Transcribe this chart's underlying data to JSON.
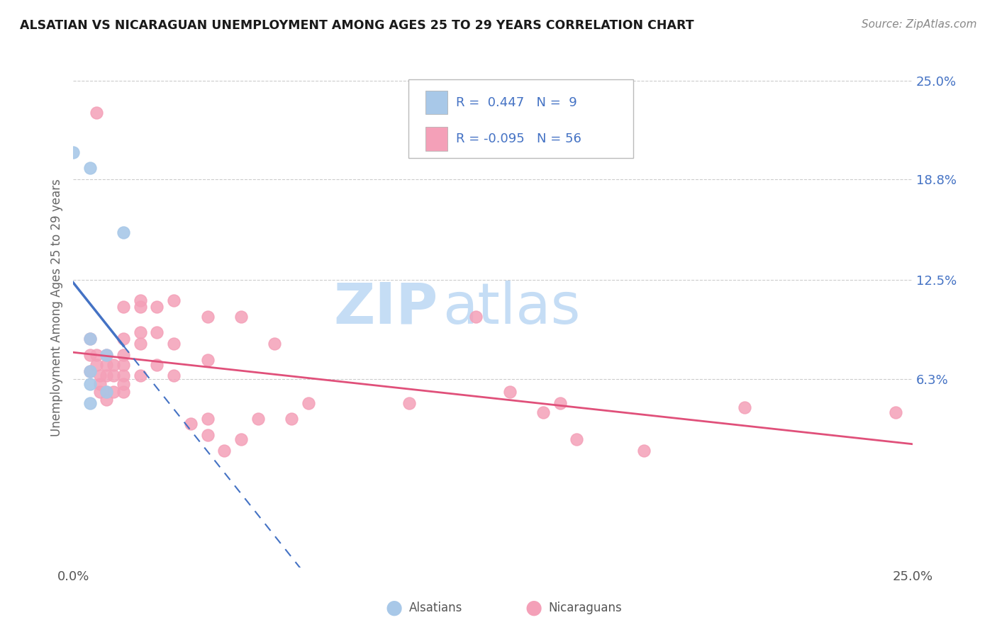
{
  "title": "ALSATIAN VS NICARAGUAN UNEMPLOYMENT AMONG AGES 25 TO 29 YEARS CORRELATION CHART",
  "source": "Source: ZipAtlas.com",
  "ylabel": "Unemployment Among Ages 25 to 29 years",
  "xlim": [
    0.0,
    0.25
  ],
  "ylim": [
    -0.055,
    0.27
  ],
  "ytick_values": [
    0.063,
    0.125,
    0.188,
    0.25
  ],
  "ytick_labels": [
    "6.3%",
    "12.5%",
    "18.8%",
    "25.0%"
  ],
  "r_alsatian": 0.447,
  "n_alsatian": 9,
  "r_nicaraguan": -0.095,
  "n_nicaraguan": 56,
  "alsatian_color": "#a8c8e8",
  "nicaraguan_color": "#f4a0b8",
  "alsatian_line_color": "#4472c4",
  "nicaraguan_line_color": "#e0507a",
  "alsatian_scatter": [
    [
      0.0,
      0.205
    ],
    [
      0.005,
      0.195
    ],
    [
      0.015,
      0.155
    ],
    [
      0.005,
      0.088
    ],
    [
      0.01,
      0.078
    ],
    [
      0.005,
      0.068
    ],
    [
      0.005,
      0.06
    ],
    [
      0.01,
      0.055
    ],
    [
      0.005,
      0.048
    ]
  ],
  "nicaraguan_scatter": [
    [
      0.007,
      0.23
    ],
    [
      0.005,
      0.088
    ],
    [
      0.005,
      0.078
    ],
    [
      0.005,
      0.068
    ],
    [
      0.007,
      0.078
    ],
    [
      0.007,
      0.072
    ],
    [
      0.008,
      0.065
    ],
    [
      0.008,
      0.06
    ],
    [
      0.008,
      0.055
    ],
    [
      0.01,
      0.078
    ],
    [
      0.01,
      0.072
    ],
    [
      0.01,
      0.065
    ],
    [
      0.01,
      0.055
    ],
    [
      0.01,
      0.05
    ],
    [
      0.012,
      0.072
    ],
    [
      0.012,
      0.065
    ],
    [
      0.012,
      0.055
    ],
    [
      0.015,
      0.108
    ],
    [
      0.015,
      0.088
    ],
    [
      0.015,
      0.078
    ],
    [
      0.015,
      0.072
    ],
    [
      0.015,
      0.065
    ],
    [
      0.015,
      0.06
    ],
    [
      0.015,
      0.055
    ],
    [
      0.02,
      0.112
    ],
    [
      0.02,
      0.108
    ],
    [
      0.02,
      0.092
    ],
    [
      0.02,
      0.085
    ],
    [
      0.02,
      0.065
    ],
    [
      0.025,
      0.108
    ],
    [
      0.025,
      0.092
    ],
    [
      0.025,
      0.072
    ],
    [
      0.03,
      0.112
    ],
    [
      0.03,
      0.085
    ],
    [
      0.03,
      0.065
    ],
    [
      0.035,
      0.035
    ],
    [
      0.04,
      0.102
    ],
    [
      0.04,
      0.075
    ],
    [
      0.04,
      0.038
    ],
    [
      0.04,
      0.028
    ],
    [
      0.045,
      0.018
    ],
    [
      0.05,
      0.102
    ],
    [
      0.05,
      0.025
    ],
    [
      0.055,
      0.038
    ],
    [
      0.06,
      0.085
    ],
    [
      0.065,
      0.038
    ],
    [
      0.07,
      0.048
    ],
    [
      0.1,
      0.048
    ],
    [
      0.12,
      0.102
    ],
    [
      0.13,
      0.055
    ],
    [
      0.14,
      0.042
    ],
    [
      0.145,
      0.048
    ],
    [
      0.15,
      0.025
    ],
    [
      0.17,
      0.018
    ],
    [
      0.2,
      0.045
    ],
    [
      0.245,
      0.042
    ]
  ],
  "background_color": "#ffffff",
  "grid_color": "#cccccc",
  "watermark_zip": "ZIP",
  "watermark_atlas": "atlas",
  "watermark_color": "#c5ddf5"
}
